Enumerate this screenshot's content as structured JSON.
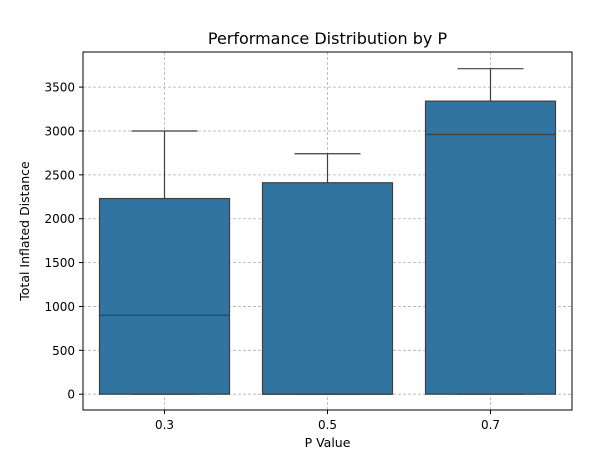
{
  "chart_data": {
    "type": "box",
    "title": "Performance Distribution by P",
    "xlabel": "P Value",
    "ylabel": "Total Inflated Distance",
    "categories": [
      "0.3",
      "0.5",
      "0.7"
    ],
    "boxes": [
      {
        "category": "0.3",
        "whisker_low": 0,
        "q1": 0,
        "median": 900,
        "q3": 2230,
        "whisker_high": 3000
      },
      {
        "category": "0.5",
        "whisker_low": 0,
        "q1": 0,
        "median": 0,
        "q3": 2410,
        "whisker_high": 2740
      },
      {
        "category": "0.7",
        "whisker_low": 0,
        "q1": 0,
        "median": 2960,
        "q3": 3340,
        "whisker_high": 3710
      }
    ],
    "yticks": [
      0,
      500,
      1000,
      1500,
      2000,
      2500,
      3000,
      3500
    ],
    "ylim": [
      -180,
      3900
    ],
    "grid": true,
    "colors": {
      "box_fill": "#3274a1",
      "box_edge": "#3f3f3f",
      "grid": "#b0b0b0",
      "axes": "#000000"
    }
  }
}
